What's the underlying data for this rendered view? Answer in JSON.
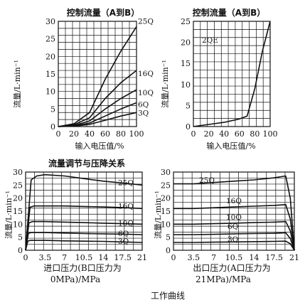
{
  "caption": "工作曲线",
  "chart_data": [
    {
      "type": "line",
      "title": "控制流量（A到B）",
      "xlabel": "输入电压值/%",
      "ylabel": "流量/L·min⁻¹",
      "xlim": [
        0,
        100
      ],
      "ylim": [
        0,
        30
      ],
      "xticks": [
        0,
        20,
        40,
        60,
        80,
        100
      ],
      "yticks": [
        0,
        5,
        10,
        15,
        20,
        25,
        30
      ],
      "grid": true,
      "series": [
        {
          "name": "25Q",
          "x": [
            0,
            20,
            40,
            60,
            80,
            100
          ],
          "y": [
            0,
            0.8,
            4,
            13.5,
            21.5,
            28.5
          ]
        },
        {
          "name": "16Q",
          "x": [
            0,
            20,
            40,
            60,
            80,
            100
          ],
          "y": [
            0,
            0.5,
            2.5,
            8,
            12.5,
            16
          ]
        },
        {
          "name": "10Q",
          "x": [
            0,
            20,
            40,
            60,
            80,
            100
          ],
          "y": [
            0,
            0.3,
            1.6,
            5,
            8,
            10.5
          ]
        },
        {
          "name": "6Q",
          "x": [
            0,
            20,
            40,
            60,
            80,
            100
          ],
          "y": [
            0,
            0.2,
            1,
            3,
            5,
            6.8
          ]
        },
        {
          "name": "3Q",
          "x": [
            0,
            20,
            40,
            60,
            80,
            100
          ],
          "y": [
            0,
            0.1,
            0.6,
            1.8,
            3,
            4
          ]
        }
      ]
    },
    {
      "type": "line",
      "title": "控制流量（A到B）",
      "xlabel": "输入电压值/%",
      "ylabel": "流量/L·min⁻¹",
      "xlim": [
        0,
        100
      ],
      "ylim": [
        0,
        25
      ],
      "xticks": [
        0,
        20,
        40,
        60,
        80,
        100
      ],
      "yticks": [
        0,
        5,
        10,
        15,
        20,
        25
      ],
      "grid": true,
      "series": [
        {
          "name": "2QE",
          "x": [
            0,
            20,
            40,
            60,
            70,
            80,
            90,
            100
          ],
          "y": [
            0,
            0.5,
            1,
            1.8,
            2.5,
            9,
            18,
            25
          ]
        }
      ]
    },
    {
      "type": "line",
      "title": "流量调节与压降关系",
      "xlabel": "进口压力(B口压力为0MPa)/MPa",
      "ylabel": "流量/L·min⁻¹",
      "xlim": [
        0,
        21
      ],
      "ylim": [
        0,
        30
      ],
      "xticks": [
        "0",
        "3.5",
        "7",
        "10.5",
        "14",
        "17.5",
        "21"
      ],
      "yticks": [
        0,
        5,
        10,
        15,
        20,
        25,
        30
      ],
      "grid": true,
      "series": [
        {
          "name": "25Q",
          "x": [
            0,
            1,
            2,
            3.5,
            7,
            10.5,
            14,
            17.5,
            21
          ],
          "y": [
            0,
            27,
            28.5,
            29,
            28.5,
            27.5,
            26.5,
            25.8,
            25
          ]
        },
        {
          "name": "16Q",
          "x": [
            0,
            0.8,
            1.5,
            3.5,
            7,
            10.5,
            14,
            17.5,
            21
          ],
          "y": [
            0,
            16.5,
            17,
            17,
            17,
            16.8,
            16.6,
            16.4,
            16
          ]
        },
        {
          "name": "10Q",
          "x": [
            0,
            0.6,
            1.2,
            3.5,
            7,
            10.5,
            14,
            17.5,
            21
          ],
          "y": [
            0,
            10.5,
            11,
            11,
            10.8,
            10.6,
            10.4,
            10.2,
            10
          ]
        },
        {
          "name": "6Q",
          "x": [
            0,
            0.5,
            1,
            3.5,
            7,
            10.5,
            14,
            17.5,
            21
          ],
          "y": [
            0,
            6.5,
            6.8,
            6.8,
            6.6,
            6.4,
            6.3,
            6.2,
            6
          ]
        },
        {
          "name": "3Q",
          "x": [
            0,
            0.4,
            0.8,
            3.5,
            7,
            10.5,
            14,
            17.5,
            21
          ],
          "y": [
            0,
            3.5,
            3.8,
            3.8,
            3.6,
            3.5,
            3.4,
            3.2,
            3
          ]
        }
      ]
    },
    {
      "type": "line",
      "title": "",
      "xlabel": "出口压力(A口压力为21MPa)/MPa",
      "ylabel": "流量/L·min⁻¹",
      "xlim": [
        0,
        21
      ],
      "ylim": [
        0,
        30
      ],
      "xticks": [
        "0",
        "3.5",
        "7",
        "10.5",
        "14",
        "17.5",
        "21"
      ],
      "yticks": [
        0,
        5,
        10,
        15,
        20,
        25,
        30
      ],
      "grid": true,
      "series": [
        {
          "name": "25Q",
          "x": [
            0,
            3.5,
            7,
            10.5,
            14,
            17.5,
            19.5,
            20.3,
            21
          ],
          "y": [
            25.5,
            25.5,
            26,
            26.5,
            27,
            27.8,
            28.5,
            20,
            0
          ]
        },
        {
          "name": "16Q",
          "x": [
            0,
            3.5,
            7,
            10.5,
            14,
            17.5,
            19.5,
            20.3,
            21
          ],
          "y": [
            16,
            16,
            16.3,
            16.6,
            16.9,
            17.2,
            17.5,
            12,
            0
          ]
        },
        {
          "name": "10Q",
          "x": [
            0,
            3.5,
            7,
            10.5,
            14,
            17.5,
            19.5,
            20.3,
            21
          ],
          "y": [
            10,
            10,
            10.2,
            10.4,
            10.6,
            10.8,
            11,
            7.5,
            0
          ]
        },
        {
          "name": "6Q",
          "x": [
            0,
            3.5,
            7,
            10.5,
            14,
            17.5,
            19.5,
            20.3,
            21
          ],
          "y": [
            6,
            6,
            6.1,
            6.3,
            6.4,
            6.5,
            6.7,
            4.5,
            0
          ]
        },
        {
          "name": "3Q",
          "x": [
            0,
            3.5,
            7,
            10.5,
            14,
            17.5,
            19.5,
            20.3,
            21
          ],
          "y": [
            3,
            3,
            3.1,
            3.2,
            3.3,
            3.4,
            3.5,
            2.5,
            0
          ]
        }
      ]
    }
  ]
}
